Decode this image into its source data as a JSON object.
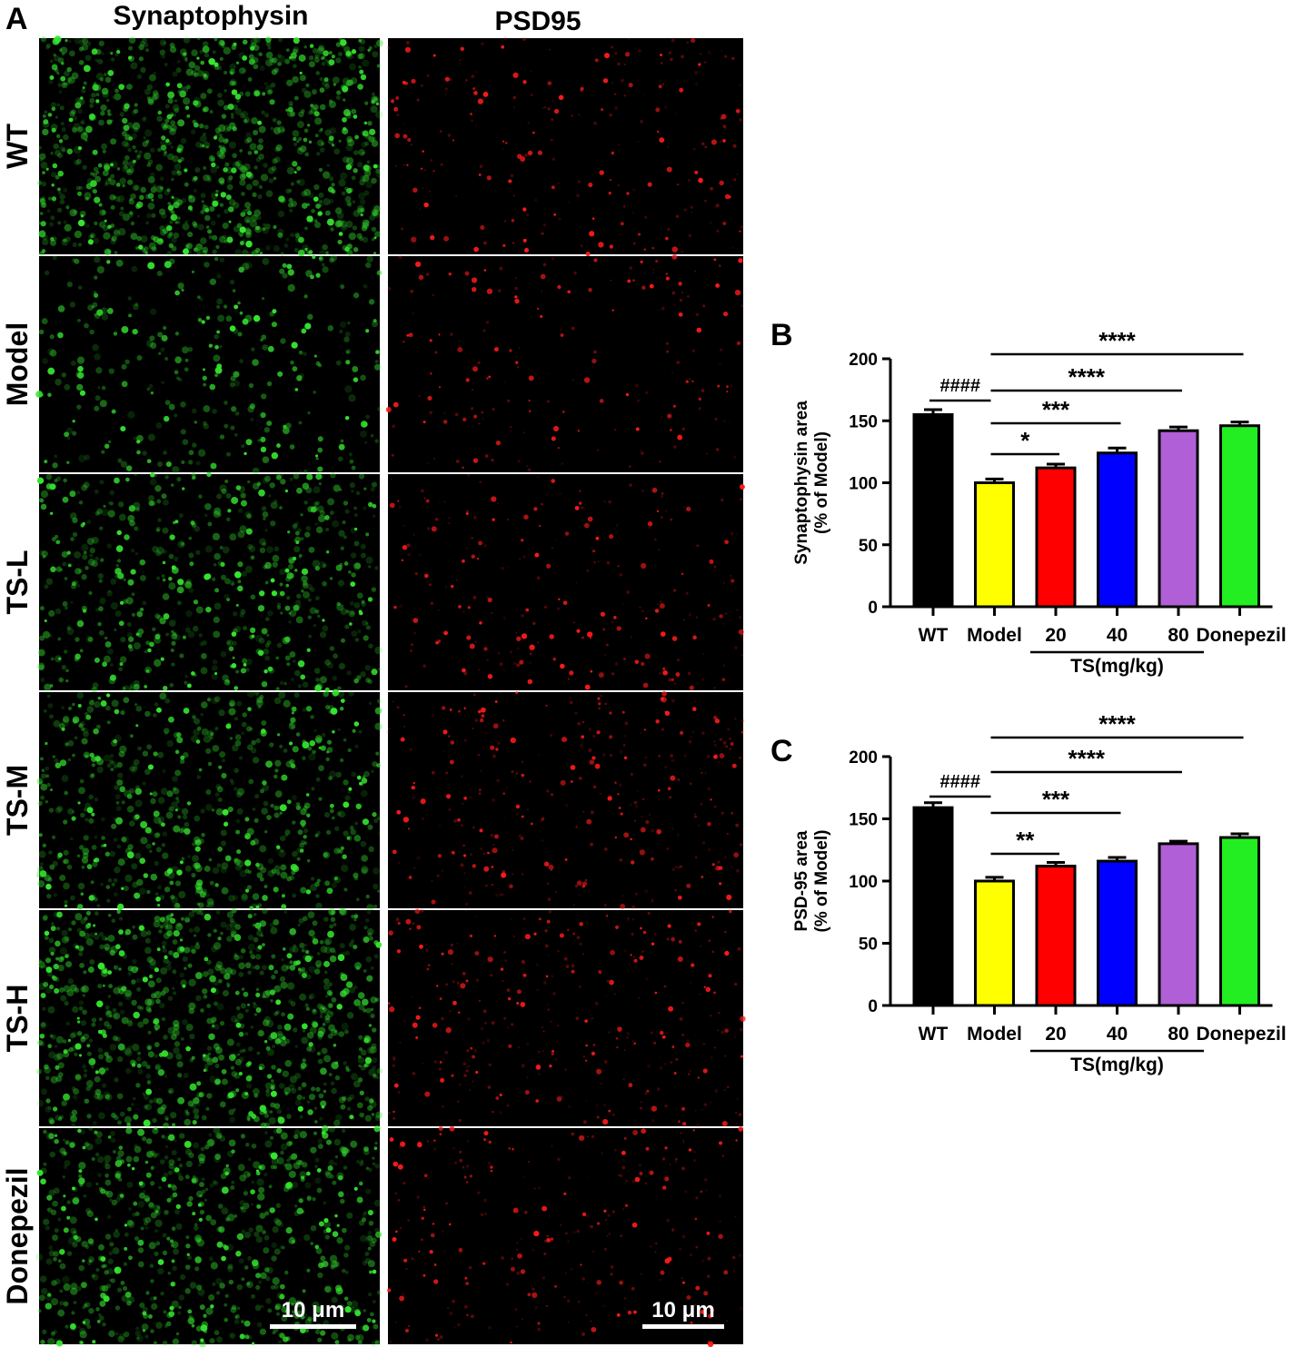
{
  "figure": {
    "panel_labels": {
      "a": "A",
      "b": "B",
      "c": "C"
    },
    "columns": [
      "Synaptophysin",
      "PSD95"
    ],
    "rows": [
      "WT",
      "Model",
      "TS-L",
      "TS-M",
      "TS-H",
      "Donepezil"
    ],
    "scale_bar_label": "10 μm",
    "stain_colors": {
      "synaptophysin": "#35e62f",
      "psd95": "#ff1a1a"
    }
  },
  "chart_data": [
    {
      "type": "bar",
      "panel": "B",
      "categories": [
        "WT",
        "Model",
        "20",
        "40",
        "80",
        "Donepezil"
      ],
      "group_label": "TS(mg/kg)",
      "values": [
        155,
        100,
        112,
        124,
        142,
        146
      ],
      "errors": [
        4,
        3,
        3,
        4,
        3,
        3
      ],
      "colors": [
        "#000000",
        "#ffff00",
        "#ff0000",
        "#0000ff",
        "#b05fd6",
        "#22ee22"
      ],
      "title": "",
      "xlabel": "",
      "ylabel": [
        "Synaptophysin area",
        "(% of Model)"
      ],
      "ylim": [
        0,
        200
      ],
      "yticks": [
        0,
        50,
        100,
        150,
        200
      ],
      "grid": false,
      "significance": [
        {
          "from": 0,
          "to": 1,
          "label": "####"
        },
        {
          "from": 1,
          "to": 2,
          "label": "*"
        },
        {
          "from": 1,
          "to": 3,
          "label": "***"
        },
        {
          "from": 1,
          "to": 4,
          "label": "****"
        },
        {
          "from": 1,
          "to": 5,
          "label": "****"
        }
      ]
    },
    {
      "type": "bar",
      "panel": "C",
      "categories": [
        "WT",
        "Model",
        "20",
        "40",
        "80",
        "Donepezil"
      ],
      "group_label": "TS(mg/kg)",
      "values": [
        159,
        100,
        112,
        116,
        130,
        135
      ],
      "errors": [
        4,
        3,
        3,
        3,
        2,
        3
      ],
      "colors": [
        "#000000",
        "#ffff00",
        "#ff0000",
        "#0000ff",
        "#b05fd6",
        "#22ee22"
      ],
      "title": "",
      "xlabel": "",
      "ylabel": [
        "PSD-95 area",
        "(% of Model)"
      ],
      "ylim": [
        0,
        200
      ],
      "yticks": [
        0,
        50,
        100,
        150,
        200
      ],
      "grid": false,
      "significance": [
        {
          "from": 0,
          "to": 1,
          "label": "####"
        },
        {
          "from": 1,
          "to": 2,
          "label": "**"
        },
        {
          "from": 1,
          "to": 3,
          "label": "***"
        },
        {
          "from": 1,
          "to": 4,
          "label": "****"
        },
        {
          "from": 1,
          "to": 5,
          "label": "****"
        }
      ]
    }
  ]
}
